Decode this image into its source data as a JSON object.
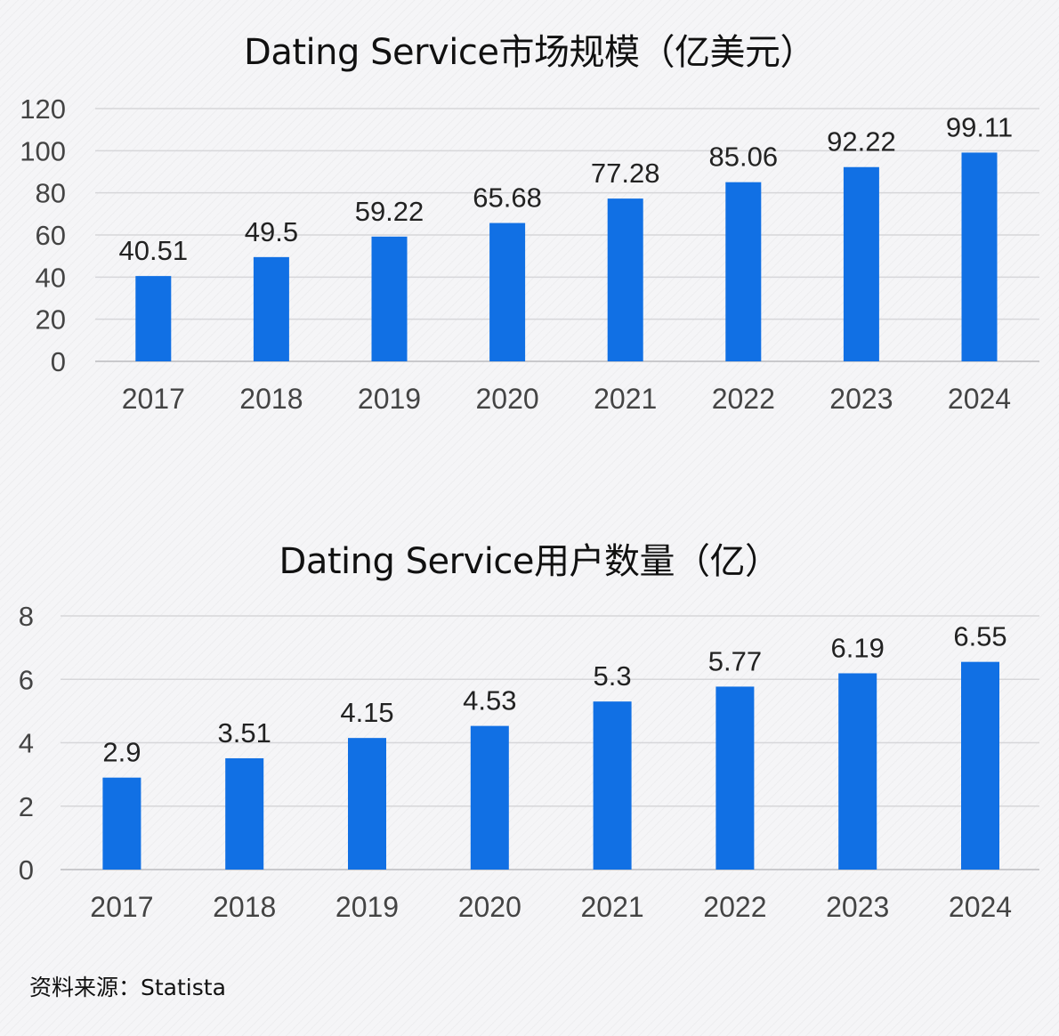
{
  "chart_data": [
    {
      "type": "bar",
      "title": "Dating Service市场规模（亿美元）",
      "categories": [
        "2017",
        "2018",
        "2019",
        "2020",
        "2021",
        "2022",
        "2023",
        "2024"
      ],
      "values": [
        40.51,
        49.5,
        59.22,
        65.68,
        77.28,
        85.06,
        92.22,
        99.11
      ],
      "value_labels": [
        "40.51",
        "49.5",
        "59.22",
        "65.68",
        "77.28",
        "85.06",
        "92.22",
        "99.11"
      ],
      "yticks": [
        "0",
        "20",
        "40",
        "60",
        "80",
        "100",
        "120"
      ],
      "ylim": [
        0,
        120
      ],
      "grid": true,
      "bar_color": "#1170e4"
    },
    {
      "type": "bar",
      "title": "Dating Service用户数量（亿）",
      "categories": [
        "2017",
        "2018",
        "2019",
        "2020",
        "2021",
        "2022",
        "2023",
        "2024"
      ],
      "values": [
        2.9,
        3.51,
        4.15,
        4.53,
        5.3,
        5.77,
        6.19,
        6.55
      ],
      "value_labels": [
        "2.9",
        "3.51",
        "4.15",
        "4.53",
        "5.3",
        "5.77",
        "6.19",
        "6.55"
      ],
      "yticks": [
        "0",
        "2",
        "4",
        "6",
        "8"
      ],
      "ylim": [
        0,
        8
      ],
      "grid": true,
      "bar_color": "#1170e4"
    }
  ],
  "source": "资料来源：Statista"
}
